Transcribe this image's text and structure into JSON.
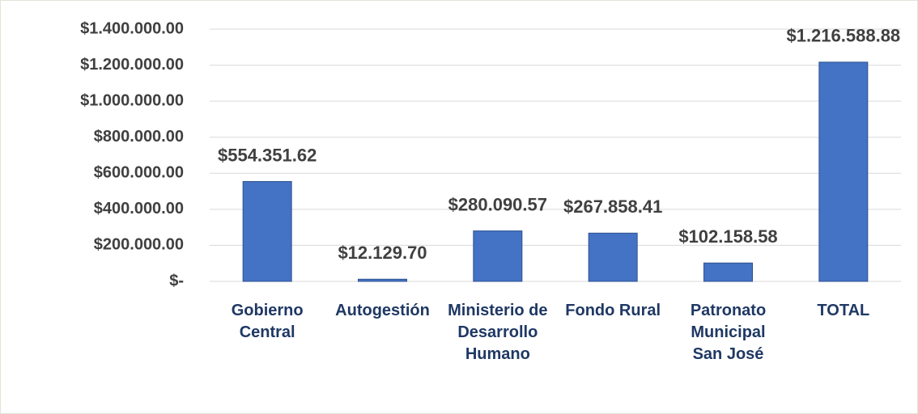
{
  "chart_data": {
    "type": "bar",
    "categories": [
      "Gobierno Central",
      "Autogestión",
      "Ministerio de Desarrollo Humano",
      "Fondo Rural",
      "Patronato Municipal San José",
      "TOTAL"
    ],
    "values": [
      554351.62,
      12129.7,
      280090.57,
      267858.41,
      102158.58,
      1216588.88
    ],
    "value_labels": [
      "$554.351.62",
      "$12.129.70",
      "$280.090.57",
      "$267.858.41",
      "$102.158.58",
      "$1.216.588.88"
    ],
    "color": "#4472c4",
    "ylim": [
      0,
      1400000
    ],
    "yticks": [
      {
        "value": 0,
        "label": "$-"
      },
      {
        "value": 200000,
        "label": "$200.000.00"
      },
      {
        "value": 400000,
        "label": "$400.000.00"
      },
      {
        "value": 600000,
        "label": "$600.000.00"
      },
      {
        "value": 800000,
        "label": "$800.000.00"
      },
      {
        "value": 1000000,
        "label": "$1.000.000.00"
      },
      {
        "value": 1200000,
        "label": "$1.200.000.00"
      },
      {
        "value": 1400000,
        "label": "$1.400.000.00"
      }
    ],
    "grid": true
  }
}
